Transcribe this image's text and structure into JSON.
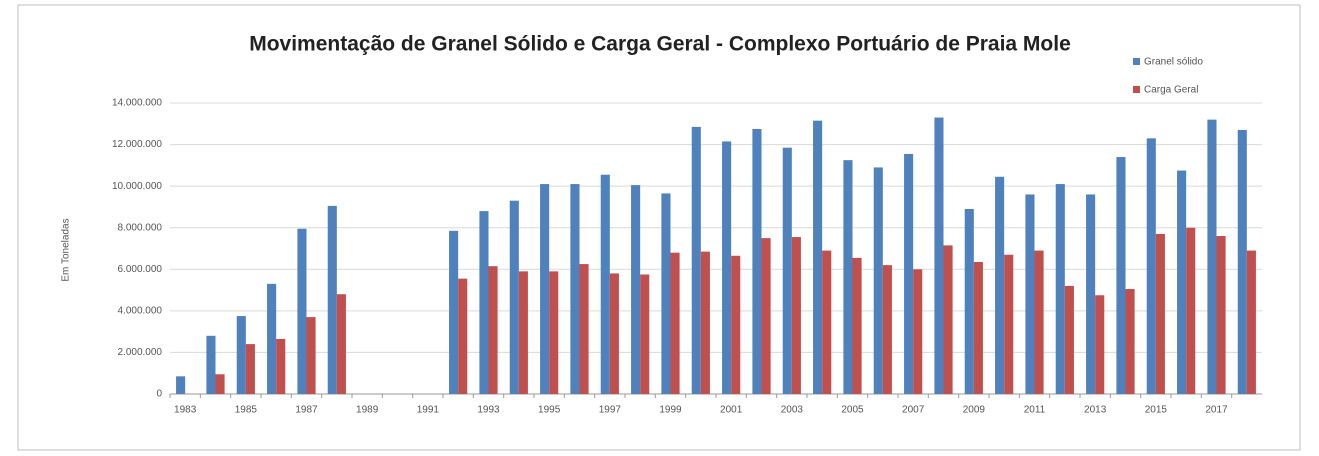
{
  "chart_data": {
    "type": "bar",
    "title": "Movimentação de Granel Sólido e Carga Geral - Complexo Portuário de Praia Mole",
    "y_label": "Em Toneladas",
    "categories": [
      "1983",
      null,
      "1985",
      null,
      "1987",
      null,
      "1989",
      null,
      "1991",
      null,
      "1993",
      null,
      "1995",
      null,
      "1997",
      null,
      "1999",
      null,
      "2001",
      null,
      "2003",
      null,
      "2005",
      null,
      "2007",
      null,
      "2009",
      null,
      "2011",
      null,
      "2013",
      null,
      "2015",
      null,
      "2017",
      null
    ],
    "series": [
      {
        "name": "Granel sólido",
        "color": "#4f81bd",
        "values": [
          850000,
          2800000,
          3750000,
          5300000,
          7950000,
          9050000,
          null,
          null,
          null,
          7850000,
          8800000,
          9300000,
          10100000,
          10100000,
          10550000,
          10050000,
          9650000,
          12850000,
          12150000,
          12750000,
          11850000,
          13150000,
          11250000,
          10900000,
          11550000,
          13300000,
          8900000,
          10450000,
          9600000,
          10100000,
          9600000,
          11400000,
          12300000,
          10750000,
          13200000,
          12700000
        ]
      },
      {
        "name": "Carga Geral",
        "color": "#c0504d",
        "values": [
          null,
          950000,
          2400000,
          2650000,
          3700000,
          4800000,
          null,
          null,
          null,
          5550000,
          6150000,
          5900000,
          5900000,
          6250000,
          5800000,
          5750000,
          6800000,
          6850000,
          6650000,
          7500000,
          7550000,
          6900000,
          6550000,
          6200000,
          6000000,
          7150000,
          6350000,
          6700000,
          6900000,
          5200000,
          4750000,
          5050000,
          7700000,
          8000000,
          7600000,
          6900000
        ]
      }
    ],
    "ylim": [
      0,
      14000000
    ],
    "yticks": [
      0,
      {
        "value": 2000000,
        "label": "2.000.000"
      },
      {
        "value": 4000000,
        "label": "4.000.000"
      },
      {
        "value": 6000000,
        "label": "6.000.000"
      },
      {
        "value": 8000000,
        "label": "8.000.000"
      },
      {
        "value": 10000000,
        "label": "10.000.000"
      },
      {
        "value": 12000000,
        "label": "12.000.000"
      },
      {
        "value": 14000000,
        "label": "14.000.000"
      }
    ],
    "grid": true,
    "legend": "top-right"
  }
}
